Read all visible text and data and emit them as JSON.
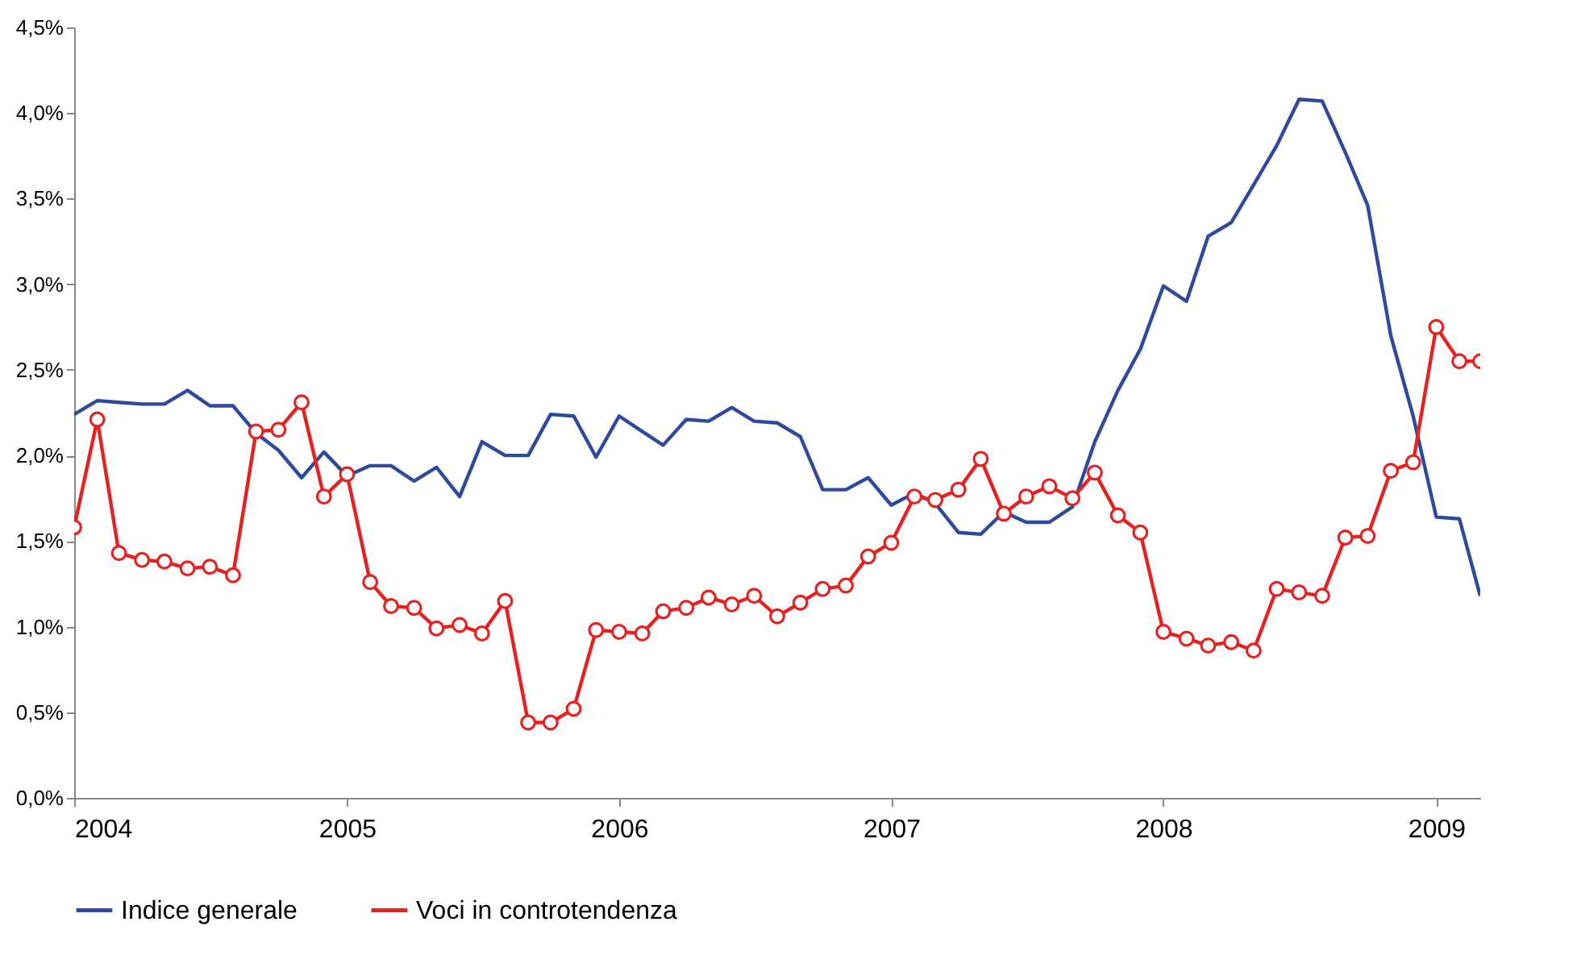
{
  "chart_data": {
    "type": "line",
    "x": [
      "2004-01",
      "2004-02",
      "2004-03",
      "2004-04",
      "2004-05",
      "2004-06",
      "2004-07",
      "2004-08",
      "2004-09",
      "2004-10",
      "2004-11",
      "2004-12",
      "2005-01",
      "2005-02",
      "2005-03",
      "2005-04",
      "2005-05",
      "2005-06",
      "2005-07",
      "2005-08",
      "2005-09",
      "2005-10",
      "2005-11",
      "2005-12",
      "2006-01",
      "2006-02",
      "2006-03",
      "2006-04",
      "2006-05",
      "2006-06",
      "2006-07",
      "2006-08",
      "2006-09",
      "2006-10",
      "2006-11",
      "2006-12",
      "2007-01",
      "2007-02",
      "2007-03",
      "2007-04",
      "2007-05",
      "2007-06",
      "2007-07",
      "2007-08",
      "2007-09",
      "2007-10",
      "2007-11",
      "2007-12",
      "2008-01",
      "2008-02",
      "2008-03",
      "2008-04",
      "2008-05",
      "2008-06",
      "2008-07",
      "2008-08",
      "2008-09",
      "2008-10",
      "2008-11",
      "2008-12",
      "2009-01",
      "2009-02",
      "2009-03"
    ],
    "series": [
      {
        "name": "Indice generale",
        "color": "#2e4a9e",
        "marker": "none",
        "values": [
          2.24,
          2.32,
          2.31,
          2.3,
          2.3,
          2.38,
          2.29,
          2.29,
          2.13,
          2.03,
          1.87,
          2.02,
          1.88,
          1.94,
          1.94,
          1.85,
          1.93,
          1.76,
          2.08,
          2.0,
          2.0,
          2.24,
          2.23,
          1.99,
          2.23,
          2.14,
          2.06,
          2.21,
          2.2,
          2.28,
          2.2,
          2.19,
          2.11,
          1.8,
          1.8,
          1.87,
          1.71,
          1.78,
          1.72,
          1.55,
          1.54,
          1.67,
          1.61,
          1.61,
          1.7,
          2.08,
          2.38,
          2.62,
          2.99,
          2.9,
          3.28,
          3.36,
          3.58,
          3.81,
          4.08,
          4.07,
          3.77,
          3.46,
          2.7,
          2.23,
          1.64,
          1.63,
          1.18
        ]
      },
      {
        "name": "Voci in controtendenza",
        "color": "#e8201f",
        "marker": "circle",
        "values": [
          1.58,
          2.21,
          1.43,
          1.39,
          1.38,
          1.34,
          1.35,
          1.3,
          2.14,
          2.15,
          2.31,
          1.76,
          1.89,
          1.26,
          1.12,
          1.11,
          0.99,
          1.01,
          0.96,
          1.15,
          0.44,
          0.44,
          0.52,
          0.98,
          0.97,
          0.96,
          1.09,
          1.11,
          1.17,
          1.13,
          1.18,
          1.06,
          1.14,
          1.22,
          1.24,
          1.41,
          1.49,
          1.76,
          1.74,
          1.8,
          1.98,
          1.66,
          1.76,
          1.82,
          1.75,
          1.9,
          1.65,
          1.55,
          0.97,
          0.93,
          0.89,
          0.91,
          0.86,
          1.22,
          1.2,
          1.18,
          1.52,
          1.53,
          1.91,
          1.96,
          2.75,
          2.55,
          2.55
        ]
      }
    ],
    "xlim": [
      "2004-01",
      "2009-03"
    ],
    "xticks": [
      "2004",
      "2005",
      "2006",
      "2007",
      "2008",
      "2009"
    ],
    "ylim": [
      0,
      4.5
    ],
    "yticks": [
      {
        "value": 0,
        "label": "0,0%"
      },
      {
        "value": 0.5,
        "label": "0,5%"
      },
      {
        "value": 1,
        "label": "1,0%"
      },
      {
        "value": 1.5,
        "label": "1,5%"
      },
      {
        "value": 2,
        "label": "2,0%"
      },
      {
        "value": 2.5,
        "label": "2,5%"
      },
      {
        "value": 3,
        "label": "3,0%"
      },
      {
        "value": 3.5,
        "label": "3,5%"
      },
      {
        "value": 4,
        "label": "4,0%"
      },
      {
        "value": 4.5,
        "label": "4,5%"
      }
    ],
    "grid": false,
    "legend": "bottom"
  }
}
